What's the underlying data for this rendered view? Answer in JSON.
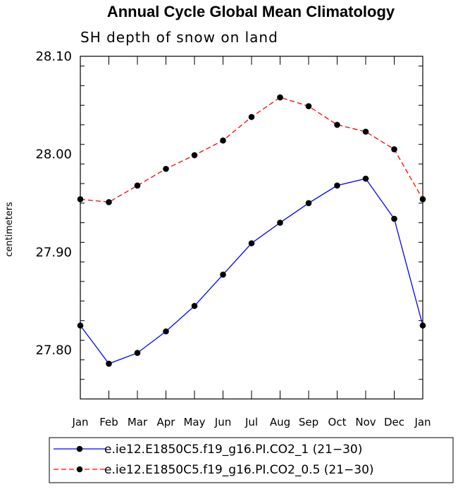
{
  "chart_data": {
    "type": "line",
    "title": "Annual Cycle Global Mean Climatology",
    "subtitle": "SH depth of snow on land",
    "xlabel": "",
    "ylabel": "centimeters",
    "categories": [
      "Jan",
      "Feb",
      "Mar",
      "Apr",
      "May",
      "Jun",
      "Jul",
      "Aug",
      "Sep",
      "Oct",
      "Nov",
      "Dec",
      "Jan"
    ],
    "ylim": [
      27.75,
      28.1
    ],
    "yticks": [
      27.8,
      27.9,
      28.0,
      28.1
    ],
    "ytick_labels": [
      "27.80",
      "27.90",
      "28.00",
      "28.10"
    ],
    "grid": false,
    "legend_position": "bottom",
    "series": [
      {
        "name": "e.ie12.E1850C5.f19_g16.PI.CO2_1 (21−30)",
        "color": "#0000ff",
        "dash": "solid",
        "values": [
          27.825,
          27.786,
          27.797,
          27.819,
          27.845,
          27.877,
          27.909,
          27.93,
          27.95,
          27.968,
          27.975,
          27.934,
          27.825
        ]
      },
      {
        "name": "e.ie12.E1850C5.f19_g16.PI.CO2_0.5 (21−30)",
        "color": "#ff0000",
        "dash": "dashed",
        "values": [
          27.954,
          27.951,
          27.968,
          27.985,
          27.999,
          28.014,
          28.038,
          28.058,
          28.049,
          28.03,
          28.023,
          28.005,
          27.954
        ]
      }
    ]
  }
}
